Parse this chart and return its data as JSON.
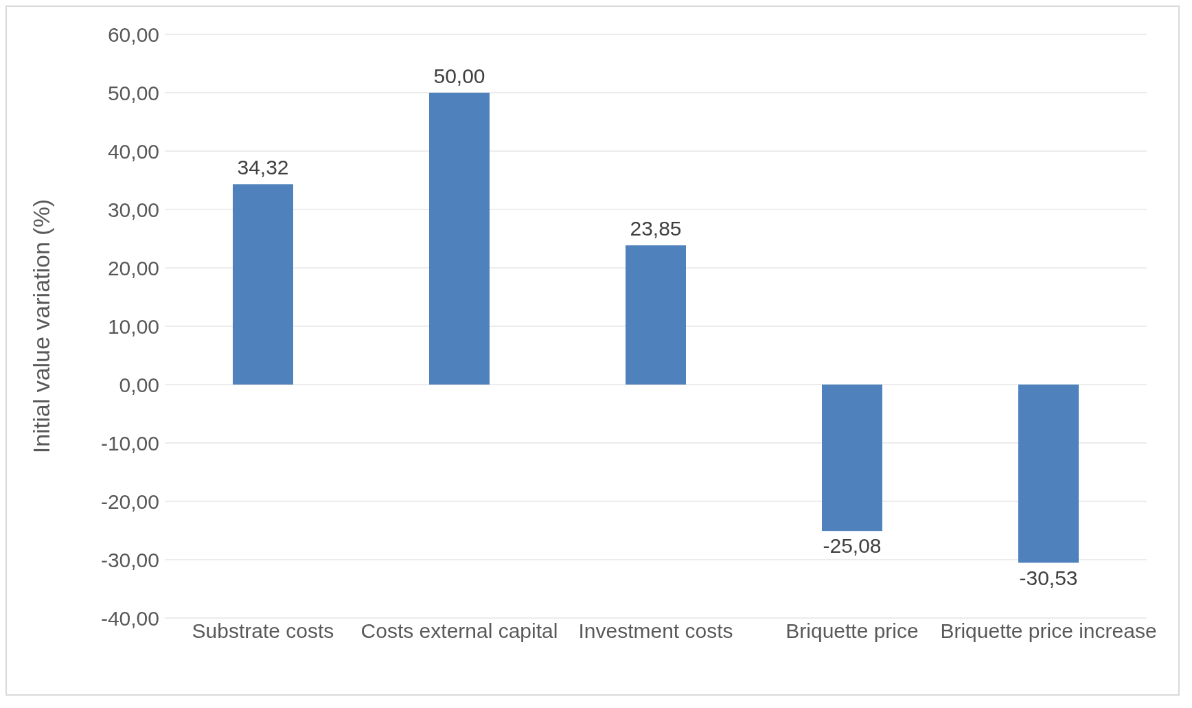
{
  "chart_data": {
    "type": "bar",
    "ylabel": "Initial value variation (%)",
    "categories": [
      "Substrate costs",
      "Costs external capital",
      "Investment costs",
      "Briquette price",
      "Briquette price increase"
    ],
    "values": [
      34.32,
      50.0,
      23.85,
      -25.08,
      -30.53
    ],
    "value_labels": [
      "34,32",
      "50,00",
      "23,85",
      "-25,08",
      "-30,53"
    ],
    "color": "#4f81bd",
    "ylim": [
      -40,
      60
    ],
    "yticks": [
      {
        "value": -40,
        "label": "-40,00"
      },
      {
        "value": -30,
        "label": "-30,00"
      },
      {
        "value": -20,
        "label": "-20,00"
      },
      {
        "value": -10,
        "label": "-10,00"
      },
      {
        "value": 0,
        "label": "0,00"
      },
      {
        "value": 10,
        "label": "10,00"
      },
      {
        "value": 20,
        "label": "20,00"
      },
      {
        "value": 30,
        "label": "30,00"
      },
      {
        "value": 40,
        "label": "40,00"
      },
      {
        "value": 50,
        "label": "50,00"
      },
      {
        "value": 60,
        "label": "60,00"
      }
    ],
    "grid": "y",
    "legend": false
  }
}
